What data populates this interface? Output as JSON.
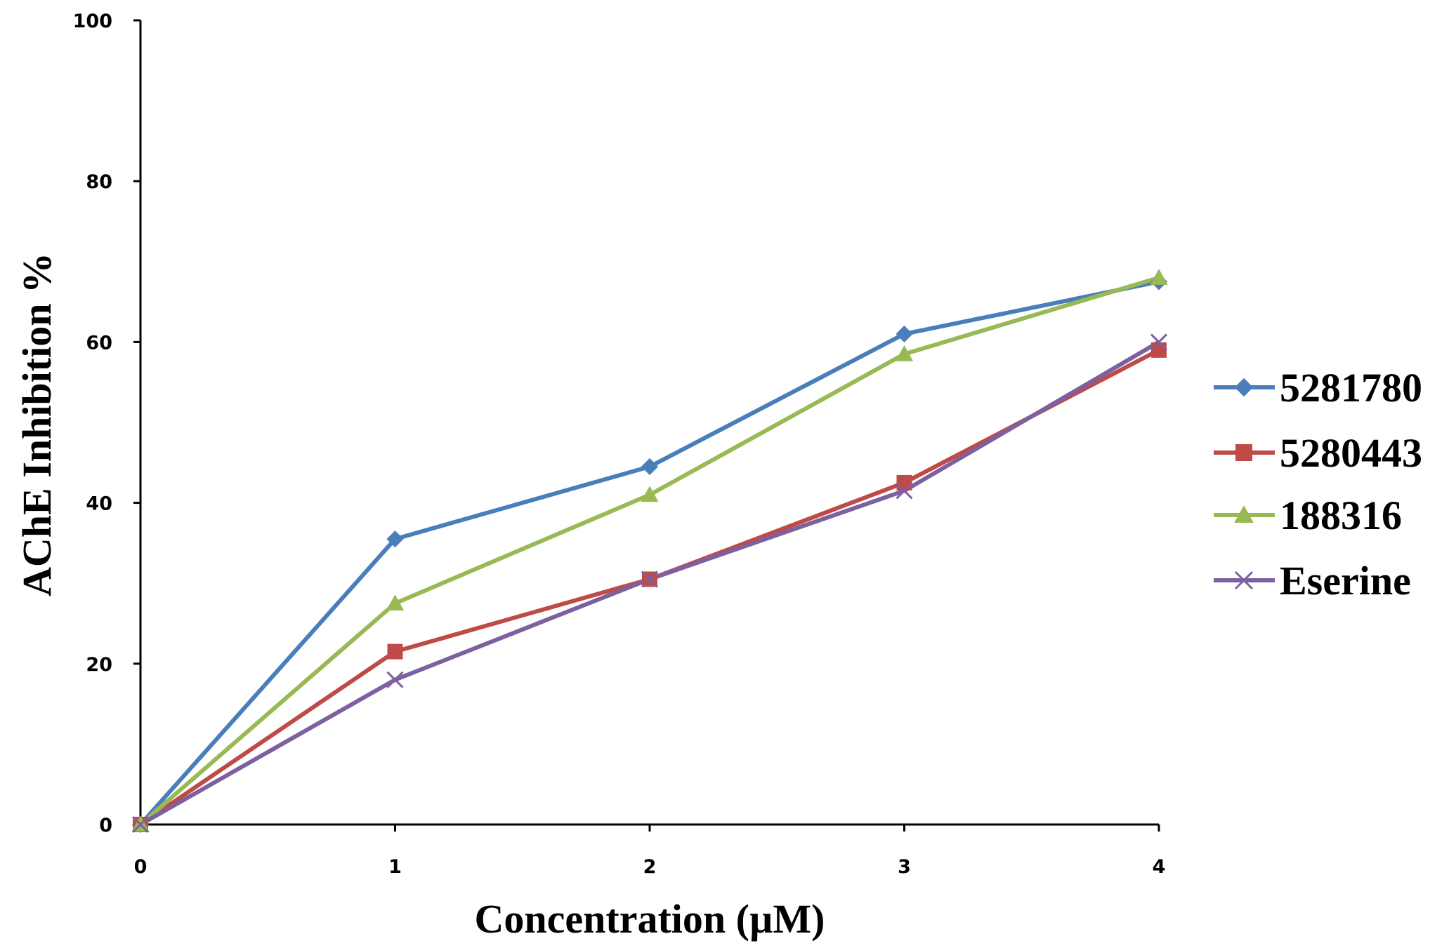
{
  "chart_data": {
    "type": "line",
    "title": "",
    "xlabel": "Concentration (µM)",
    "ylabel": "AChE Inhibition %",
    "x": [
      0,
      1,
      2,
      3,
      4
    ],
    "xlim": [
      0,
      4
    ],
    "ylim": [
      0,
      100
    ],
    "x_ticks": [
      "0",
      "1",
      "2",
      "3",
      "4"
    ],
    "y_ticks": [
      "0",
      "20",
      "40",
      "60",
      "80",
      "100"
    ],
    "grid": false,
    "legend_position": "right",
    "series": [
      {
        "name": "5281780",
        "values": [
          0,
          35.5,
          44.5,
          61,
          67.5
        ],
        "color": "#4A7EBB",
        "marker": "diamond"
      },
      {
        "name": "5280443",
        "values": [
          0,
          21.5,
          30.5,
          42.5,
          59
        ],
        "color": "#BE4B48",
        "marker": "square"
      },
      {
        "name": "188316",
        "values": [
          0,
          27.5,
          41,
          58.5,
          68
        ],
        "color": "#98B954",
        "marker": "triangle"
      },
      {
        "name": "Eserine",
        "values": [
          0,
          18,
          30.5,
          41.5,
          60
        ],
        "color": "#7D60A0",
        "marker": "x"
      }
    ]
  }
}
